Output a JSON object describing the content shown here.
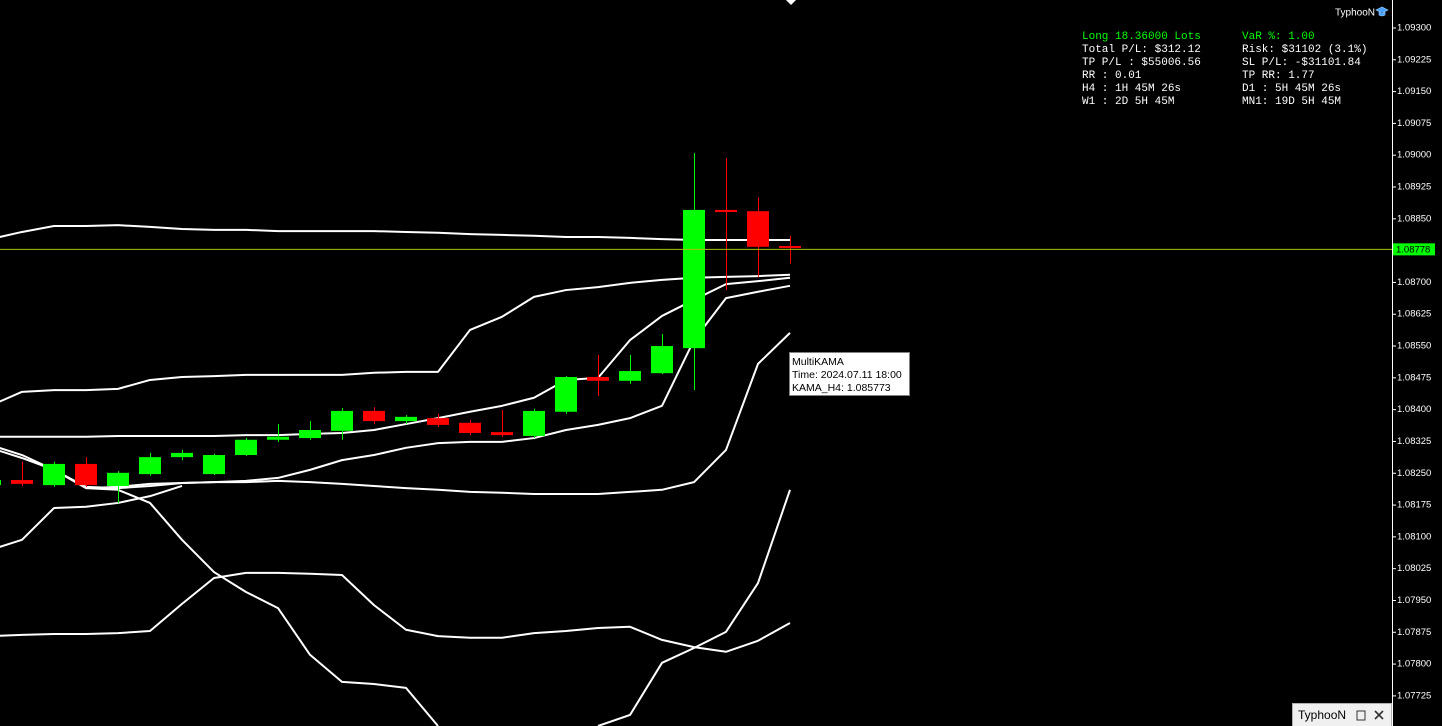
{
  "chart_data": {
    "type": "candlestick",
    "categories": [
      null,
      null,
      null,
      null,
      null,
      null,
      null,
      null,
      null,
      null,
      null,
      null,
      null,
      null,
      null,
      null,
      null,
      null,
      null,
      null,
      null,
      null,
      null,
      null,
      null,
      null
    ],
    "open": [
      1.08222,
      1.08234,
      1.08222,
      1.08272,
      1.0822,
      1.08248,
      1.08288,
      1.08248,
      1.08293,
      1.08329,
      1.08333,
      1.0835,
      1.08397,
      1.08373,
      1.0838,
      1.08369,
      1.08347,
      1.08338,
      1.08395,
      1.08477,
      1.08468,
      1.08486,
      1.08545,
      1.08871,
      1.08868,
      1.08786
    ],
    "high": [
      1.08236,
      1.08277,
      1.08277,
      1.08288,
      1.08255,
      1.08298,
      1.08305,
      1.08296,
      1.08333,
      1.08366,
      1.08373,
      1.08404,
      1.08406,
      1.08387,
      1.0839,
      1.08376,
      1.08399,
      1.08402,
      1.08479,
      1.08529,
      1.08529,
      1.08578,
      1.09005,
      1.08993,
      1.08901,
      1.0881
    ],
    "low": [
      1.0822,
      1.0822,
      1.08218,
      1.08218,
      1.0818,
      1.08244,
      1.08281,
      1.08246,
      1.08291,
      1.08324,
      1.08329,
      1.08329,
      1.08366,
      1.08366,
      1.08359,
      1.0834,
      1.08336,
      1.08333,
      1.0839,
      1.08432,
      1.08461,
      1.08484,
      1.08446,
      1.08682,
      1.08713,
      1.08744
    ],
    "close": [
      1.08234,
      1.08225,
      1.08272,
      1.08222,
      1.08251,
      1.08288,
      1.08298,
      1.08293,
      1.08329,
      1.08336,
      1.08352,
      1.08397,
      1.08373,
      1.08383,
      1.08364,
      1.08345,
      1.0834,
      1.08397,
      1.08477,
      1.08468,
      1.08491,
      1.0855,
      1.08871,
      1.08866,
      1.08784,
      1.08781
    ],
    "up_color": "#00ff00",
    "down_color": "#ff0000",
    "lines": [
      {
        "color": "#ffffff",
        "values": [
          1.08802,
          1.08819,
          1.08833,
          1.08833,
          1.08835,
          1.08831,
          1.08826,
          1.08824,
          1.08824,
          1.08821,
          1.08821,
          1.08821,
          1.08821,
          1.08819,
          1.08817,
          1.08814,
          1.08812,
          1.0881,
          1.08807,
          1.08807,
          1.08805,
          1.08802,
          1.088,
          1.088,
          1.088,
          1.088
        ]
      },
      {
        "color": "#ffffff",
        "values": [
          1.08409,
          1.08442,
          1.08446,
          1.08446,
          1.08449,
          1.0847,
          1.08477,
          1.08479,
          1.08482,
          1.08482,
          1.08482,
          1.08482,
          1.08487,
          1.08489,
          1.08489,
          1.08588,
          1.08619,
          1.08666,
          1.08682,
          1.08689,
          1.08699,
          1.08706,
          1.08711,
          1.08713,
          1.08715,
          1.08718
        ]
      },
      {
        "color": "#ffffff",
        "values": [
          1.08336,
          1.08336,
          1.08336,
          1.08336,
          1.08338,
          1.08338,
          1.08338,
          1.08338,
          1.0834,
          1.0834,
          1.08343,
          1.08345,
          1.08352,
          1.08366,
          1.0838,
          1.08395,
          1.08409,
          1.08428,
          1.0847,
          1.08475,
          1.08564,
          1.08621,
          1.08659,
          1.08696,
          1.08703,
          1.08711
        ]
      },
      {
        "color": "#ffffff",
        "values": [
          1.0831,
          1.08286,
          1.08258,
          1.08218,
          1.08215,
          1.0822,
          1.08227,
          1.08229,
          1.08232,
          1.08239,
          1.08258,
          1.08281,
          1.08293,
          1.0831,
          1.08321,
          1.08324,
          1.08324,
          1.08333,
          1.08352,
          1.08364,
          1.0838,
          1.08409,
          1.08564,
          1.08663,
          1.08678,
          1.08692
        ]
      },
      {
        "color": "#ffffff",
        "values": [
          null,
          null,
          null,
          1.08215,
          1.08218,
          1.08225,
          1.08227,
          1.08229,
          1.08229,
          1.08232,
          1.08229,
          1.08225,
          1.0822,
          1.08215,
          1.08211,
          1.08206,
          1.08204,
          1.08201,
          1.08201,
          1.08201,
          1.08206,
          1.08211,
          1.08229,
          1.08305,
          1.08508,
          1.08581
        ]
      },
      {
        "color": "#ffffff",
        "values": [
          1.08317,
          1.08293,
          1.08258,
          1.08215,
          1.08211,
          1.0818,
          1.08093,
          1.08017,
          1.0797,
          1.07932,
          1.07822,
          1.07758,
          1.07753,
          1.07744,
          1.07654,
          null,
          null,
          null,
          null,
          null,
          null,
          null,
          null,
          null,
          null,
          null
        ]
      },
      {
        "color": "#ffffff",
        "values": [
          1.08069,
          1.08093,
          1.08168,
          1.08171,
          1.0818,
          1.08196,
          1.0822,
          null,
          null,
          null,
          null,
          null,
          null,
          null,
          null,
          null,
          null,
          null,
          null,
          null,
          null,
          null,
          null,
          null,
          null,
          null
        ]
      },
      {
        "color": "#ffffff",
        "values": [
          1.07866,
          1.07869,
          1.07871,
          1.07871,
          1.07873,
          1.07878,
          1.07942,
          1.08003,
          1.08015,
          1.08015,
          1.08013,
          1.0801,
          1.07939,
          1.07881,
          1.07866,
          1.07862,
          1.07862,
          1.07873,
          1.07878,
          1.07885,
          1.07888,
          1.07857,
          1.0784,
          1.07829,
          1.07855,
          1.07897
        ]
      },
      {
        "color": "#ffffff",
        "values": [
          null,
          null,
          null,
          null,
          null,
          null,
          null,
          null,
          null,
          null,
          null,
          null,
          null,
          null,
          null,
          null,
          null,
          null,
          null,
          1.07654,
          1.0768,
          1.07803,
          1.07838,
          1.07876,
          1.07991,
          1.08211
        ]
      }
    ],
    "current_price": 1.08778,
    "current_price_color": "#00ff00",
    "ylim": [
      1.07654,
      1.09366
    ],
    "yticks": [
      {
        "value": 1.093,
        "label": "1.09300"
      },
      1.09225,
      {
        "value": 1.0915,
        "label": "1.09150"
      },
      1.09075,
      {
        "value": 1.09,
        "label": "1.09000"
      },
      1.08925,
      {
        "value": 1.0885,
        "label": "1.08850"
      },
      1.08775,
      {
        "value": 1.087,
        "label": "1.08700"
      },
      1.08625,
      {
        "value": 1.0855,
        "label": "1.08550"
      },
      1.08475,
      {
        "value": 1.084,
        "label": "1.08400"
      },
      1.08325,
      {
        "value": 1.0825,
        "label": "1.08250"
      },
      1.08175,
      {
        "value": 1.081,
        "label": "1.08100"
      },
      1.08025,
      {
        "value": 1.0795,
        "label": "1.07950"
      },
      1.07875,
      {
        "value": 1.078,
        "label": "1.07800"
      },
      1.07725
    ],
    "grid": false
  },
  "panel": {
    "left": [
      "Long 18.36000 Lots",
      "Total P/L: $312.12",
      "TP P/L : $55006.56",
      "RR : 0.01",
      "H4 : 1H 45M 26s",
      "W1 : 2D 5H 45M"
    ],
    "right": [
      "VaR %: 1.00",
      "Risk: $31102 (3.1%)",
      "SL P/L: -$31101.84",
      "TP RR: 1.77",
      "D1 : 5H 45M 26s",
      "MN1: 19D 5H 45M"
    ]
  },
  "tooltip": {
    "lines": [
      "MultiKAMA",
      "Time: 2024.07.11 18:00",
      "KAMA_H4: 1.085773"
    ]
  },
  "brand": "TyphooN",
  "window_title": "TyphooN"
}
